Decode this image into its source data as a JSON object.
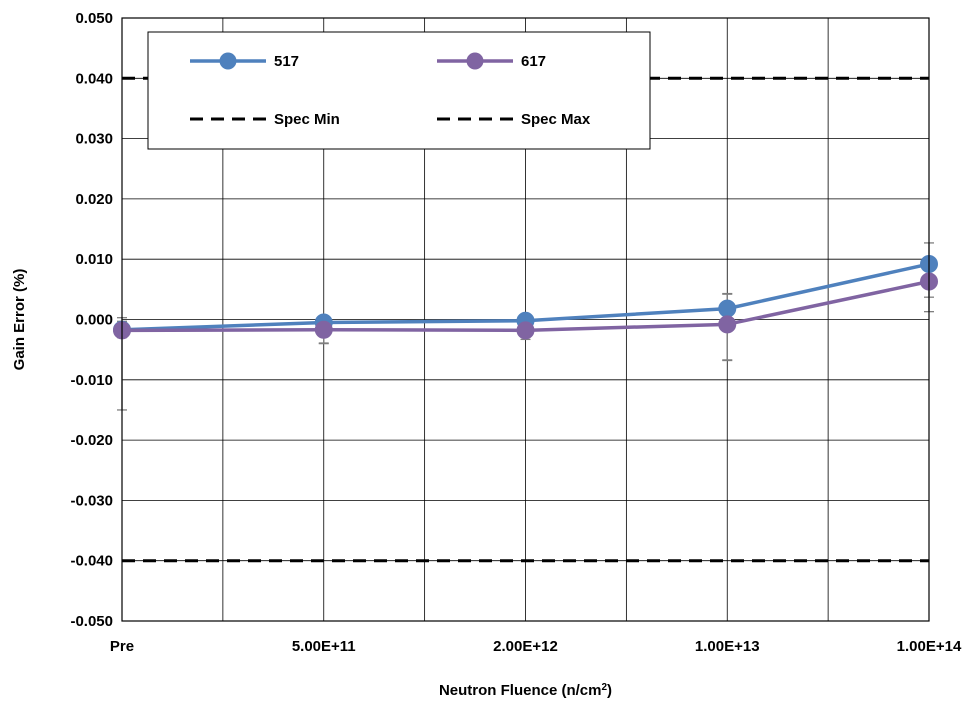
{
  "chart_data": {
    "type": "line",
    "title": "",
    "xlabel": "Neutron Fluence (n/cm²)",
    "xlabel_main": "Neutron Fluence (n/cm",
    "xlabel_sup": "2",
    "xlabel_end": ")",
    "ylabel": "Gain Error (%)",
    "ylim": [
      -0.05,
      0.05
    ],
    "ytick_step": 0.01,
    "yticks": [
      "0.050",
      "0.040",
      "0.030",
      "0.020",
      "0.010",
      "0.000",
      "-0.010",
      "-0.020",
      "-0.030",
      "-0.040",
      "-0.050"
    ],
    "categories": [
      "Pre",
      "5.00E+11",
      "2.00E+12",
      "1.00E+13",
      "1.00E+14"
    ],
    "grid": true,
    "legend_position": "top-left",
    "series": [
      {
        "name": "517",
        "color": "#4f81bd",
        "values": [
          -0.0017,
          -0.0005,
          -0.0002,
          0.0018,
          0.0092
        ],
        "err_low": [
          0.0013,
          0.0035,
          0.0012,
          0.0085,
          0.0055
        ],
        "err_high": [
          0.002,
          0.001,
          0.001,
          0.0025,
          0.0035
        ]
      },
      {
        "name": "617",
        "color": "#8064a2",
        "values": [
          -0.0018,
          -0.0017,
          -0.0018,
          -0.0008,
          0.0063
        ],
        "err_low": [
          0.0132,
          0.0022,
          0.0015,
          0.006,
          0.005
        ],
        "err_high": [
          0.0015,
          0.001,
          0.0012,
          0.005,
          0.0025
        ]
      }
    ],
    "reference_lines": [
      {
        "name": "Spec Min",
        "value": -0.04,
        "color": "#000000"
      },
      {
        "name": "Spec Max",
        "value": 0.04,
        "color": "#000000"
      }
    ],
    "legend": [
      "517",
      "617",
      "Spec Min",
      "Spec Max"
    ]
  }
}
